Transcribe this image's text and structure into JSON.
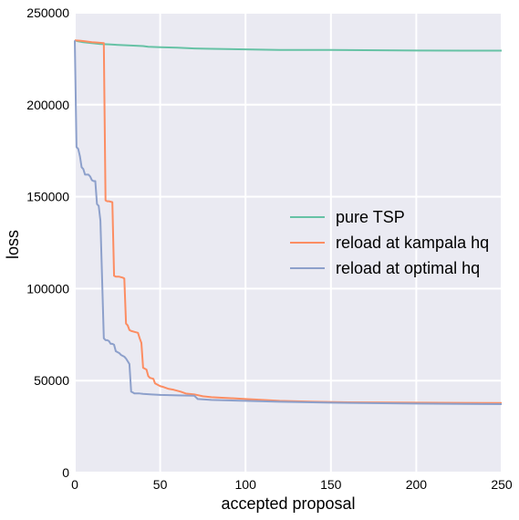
{
  "chart_data": {
    "type": "line",
    "title": "",
    "xlabel": "accepted proposal",
    "ylabel": "loss",
    "xlim": [
      0,
      250
    ],
    "ylim": [
      0,
      250000
    ],
    "xticks": [
      0,
      50,
      100,
      150,
      200,
      250
    ],
    "yticks": [
      0,
      50000,
      100000,
      150000,
      200000,
      250000
    ],
    "grid": true,
    "legend_position": "center-right",
    "background": "#eaeaf2",
    "series": [
      {
        "name": "pure TSP",
        "color": "#66c2a5",
        "x": [
          0,
          2,
          5,
          10,
          15,
          20,
          30,
          40,
          43,
          50,
          60,
          70,
          80,
          100,
          120,
          150,
          200,
          250
        ],
        "y": [
          235000,
          234500,
          234000,
          233500,
          233000,
          232800,
          232300,
          231900,
          231500,
          231300,
          231000,
          230600,
          230400,
          230100,
          229800,
          229800,
          229500,
          229400
        ]
      },
      {
        "name": "reload at kampala hq",
        "color": "#fc8d62",
        "x": [
          0,
          3,
          6,
          10,
          13,
          16,
          17,
          18,
          19,
          20,
          22,
          23,
          24,
          26,
          28,
          29,
          30,
          31,
          32,
          33,
          35,
          37,
          38,
          39,
          40,
          41,
          42,
          43,
          44,
          46,
          47,
          48,
          50,
          52,
          55,
          58,
          62,
          65,
          70,
          75,
          80,
          90,
          100,
          110,
          120,
          140,
          160,
          200,
          250
        ],
        "y": [
          235000,
          234800,
          234500,
          234000,
          233800,
          233600,
          233500,
          148000,
          147500,
          147500,
          147000,
          107000,
          106500,
          106500,
          106000,
          105500,
          81000,
          80000,
          77500,
          77000,
          76500,
          76000,
          73000,
          70500,
          57000,
          56500,
          56000,
          52500,
          51500,
          51000,
          48500,
          48000,
          47000,
          46500,
          45500,
          45000,
          44000,
          43000,
          42500,
          41500,
          41000,
          40500,
          40000,
          39500,
          39000,
          38500,
          38200,
          38000,
          37800
        ]
      },
      {
        "name": "reload at optimal hq",
        "color": "#8da0cb",
        "x": [
          0,
          1,
          2,
          3,
          4,
          5,
          6,
          7,
          8,
          9,
          10,
          11,
          12,
          13,
          14,
          15,
          16,
          17,
          18,
          19,
          20,
          21,
          22,
          23,
          24,
          25,
          26,
          27,
          28,
          29,
          30,
          31,
          32,
          33,
          34,
          35,
          36,
          37,
          38,
          40,
          45,
          50,
          60,
          70,
          72,
          80,
          100,
          120,
          150,
          200,
          250
        ],
        "y": [
          235000,
          177000,
          176000,
          172000,
          166000,
          165000,
          162000,
          162000,
          162000,
          161000,
          159000,
          158500,
          158500,
          146000,
          145000,
          137000,
          105000,
          73000,
          72000,
          72000,
          71500,
          70000,
          70000,
          69500,
          66000,
          65500,
          65000,
          64000,
          63500,
          63000,
          62000,
          60500,
          59000,
          44000,
          43500,
          43000,
          43000,
          43000,
          43000,
          42800,
          42500,
          42200,
          42000,
          41800,
          40000,
          39500,
          39000,
          38500,
          38000,
          37500,
          37200
        ]
      }
    ]
  }
}
